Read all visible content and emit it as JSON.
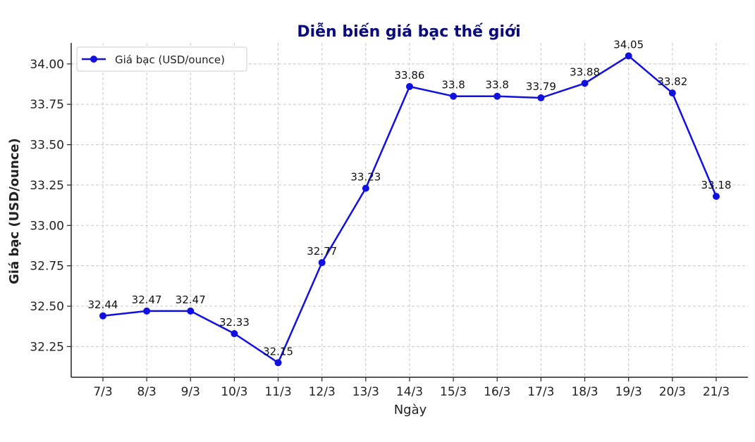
{
  "chart_data": {
    "type": "line",
    "title": "Diễn biến giá bạc thế giới",
    "xlabel": "Ngày",
    "ylabel": "Giá bạc (USD/ounce)",
    "categories": [
      "7/3",
      "8/3",
      "9/3",
      "10/3",
      "11/3",
      "12/3",
      "13/3",
      "14/3",
      "15/3",
      "16/3",
      "17/3",
      "18/3",
      "19/3",
      "20/3",
      "21/3"
    ],
    "series": [
      {
        "name": "Giá bạc (USD/ounce)",
        "values": [
          32.44,
          32.47,
          32.47,
          32.33,
          32.15,
          32.77,
          33.23,
          33.86,
          33.8,
          33.8,
          33.79,
          33.88,
          34.05,
          33.82,
          33.18
        ],
        "value_labels": [
          "32.44",
          "32.47",
          "32.47",
          "32.33",
          "32.15",
          "32.77",
          "33.23",
          "33.86",
          "33.8",
          "33.8",
          "33.79",
          "33.88",
          "34.05",
          "33.82",
          "33.18"
        ]
      }
    ],
    "yticks": [
      "32.25",
      "32.50",
      "32.75",
      "33.00",
      "33.25",
      "33.50",
      "33.75",
      "34.00"
    ],
    "ylim": [
      32.06,
      34.13
    ],
    "grid": true,
    "legend_position": "top-left",
    "colors": {
      "line": "#1010e0",
      "title": "#0a0a7a"
    }
  }
}
